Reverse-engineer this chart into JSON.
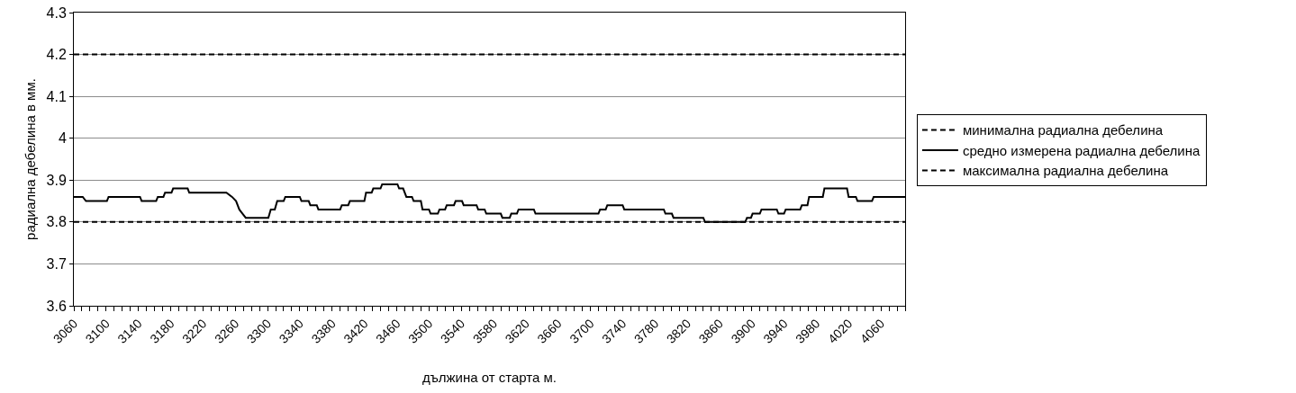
{
  "chart_data": {
    "type": "line",
    "xlabel": "дължина от старта м.",
    "ylabel": "радиална дебелина в мм.",
    "series": [
      {
        "name": "минимална радиална дебелина",
        "color": "#000000",
        "line_style": "dashed",
        "x": [
          3060,
          4090
        ],
        "values": [
          3.8,
          3.8
        ]
      },
      {
        "name": "средно измерена радиална дебелина",
        "color": "#000000",
        "line_style": "solid",
        "x": [
          3060,
          3071,
          3075,
          3101,
          3103,
          3142,
          3144,
          3162,
          3164,
          3171,
          3173,
          3181,
          3183,
          3201,
          3203,
          3249,
          3256,
          3261,
          3265,
          3269,
          3273,
          3301,
          3304,
          3309,
          3312,
          3320,
          3322,
          3340,
          3342,
          3351,
          3353,
          3361,
          3363,
          3390,
          3392,
          3400,
          3402,
          3420,
          3422,
          3429,
          3431,
          3440,
          3442,
          3461,
          3463,
          3468,
          3472,
          3479,
          3481,
          3490,
          3492,
          3500,
          3502,
          3511,
          3513,
          3520,
          3522,
          3531,
          3533,
          3541,
          3543,
          3559,
          3561,
          3569,
          3571,
          3589,
          3591,
          3600,
          3602,
          3609,
          3611,
          3630,
          3632,
          3710,
          3712,
          3719,
          3721,
          3740,
          3742,
          3791,
          3793,
          3801,
          3803,
          3840,
          3842,
          3892,
          3894,
          3899,
          3901,
          3910,
          3912,
          3931,
          3933,
          3940,
          3942,
          3960,
          3962,
          3969,
          3971,
          3988,
          3990,
          4018,
          4020,
          4029,
          4031,
          4049,
          4051,
          4090
        ],
        "values": [
          3.86,
          3.86,
          3.85,
          3.85,
          3.86,
          3.86,
          3.85,
          3.85,
          3.86,
          3.86,
          3.87,
          3.87,
          3.88,
          3.88,
          3.87,
          3.87,
          3.86,
          3.85,
          3.83,
          3.82,
          3.81,
          3.81,
          3.83,
          3.83,
          3.85,
          3.85,
          3.86,
          3.86,
          3.85,
          3.85,
          3.84,
          3.84,
          3.83,
          3.83,
          3.84,
          3.84,
          3.85,
          3.85,
          3.87,
          3.87,
          3.88,
          3.88,
          3.89,
          3.89,
          3.88,
          3.88,
          3.86,
          3.86,
          3.85,
          3.85,
          3.83,
          3.83,
          3.82,
          3.82,
          3.83,
          3.83,
          3.84,
          3.84,
          3.85,
          3.85,
          3.84,
          3.84,
          3.83,
          3.83,
          3.82,
          3.82,
          3.81,
          3.81,
          3.82,
          3.82,
          3.83,
          3.83,
          3.82,
          3.82,
          3.83,
          3.83,
          3.84,
          3.84,
          3.83,
          3.83,
          3.82,
          3.82,
          3.81,
          3.81,
          3.8,
          3.8,
          3.81,
          3.81,
          3.82,
          3.82,
          3.83,
          3.83,
          3.82,
          3.82,
          3.83,
          3.83,
          3.84,
          3.84,
          3.86,
          3.86,
          3.88,
          3.88,
          3.86,
          3.86,
          3.85,
          3.85,
          3.86,
          3.86
        ]
      },
      {
        "name": "максимална радиална дебелина",
        "color": "#000000",
        "line_style": "dashed",
        "x": [
          3060,
          4090
        ],
        "values": [
          4.2,
          4.2
        ]
      }
    ],
    "xlim": [
      3060,
      4090
    ],
    "xticks": [
      3060,
      {
        "value": 3070,
        "label": null
      },
      {
        "value": 3080,
        "label": null
      },
      {
        "value": 3090,
        "label": null
      },
      3100,
      {
        "value": 3110,
        "label": null
      },
      {
        "value": 3120,
        "label": null
      },
      {
        "value": 3130,
        "label": null
      },
      3140,
      {
        "value": 3150,
        "label": null
      },
      {
        "value": 3160,
        "label": null
      },
      {
        "value": 3170,
        "label": null
      },
      3180,
      {
        "value": 3190,
        "label": null
      },
      {
        "value": 3200,
        "label": null
      },
      {
        "value": 3210,
        "label": null
      },
      3220,
      {
        "value": 3230,
        "label": null
      },
      {
        "value": 3240,
        "label": null
      },
      {
        "value": 3250,
        "label": null
      },
      3260,
      {
        "value": 3270,
        "label": null
      },
      {
        "value": 3280,
        "label": null
      },
      {
        "value": 3290,
        "label": null
      },
      3300,
      {
        "value": 3310,
        "label": null
      },
      {
        "value": 3320,
        "label": null
      },
      {
        "value": 3330,
        "label": null
      },
      3340,
      {
        "value": 3350,
        "label": null
      },
      {
        "value": 3360,
        "label": null
      },
      {
        "value": 3370,
        "label": null
      },
      3380,
      {
        "value": 3390,
        "label": null
      },
      {
        "value": 3400,
        "label": null
      },
      {
        "value": 3410,
        "label": null
      },
      3420,
      {
        "value": 3430,
        "label": null
      },
      {
        "value": 3440,
        "label": null
      },
      {
        "value": 3450,
        "label": null
      },
      3460,
      {
        "value": 3470,
        "label": null
      },
      {
        "value": 3480,
        "label": null
      },
      {
        "value": 3490,
        "label": null
      },
      3500,
      {
        "value": 3510,
        "label": null
      },
      {
        "value": 3520,
        "label": null
      },
      {
        "value": 3530,
        "label": null
      },
      3540,
      {
        "value": 3550,
        "label": null
      },
      {
        "value": 3560,
        "label": null
      },
      {
        "value": 3570,
        "label": null
      },
      3580,
      {
        "value": 3590,
        "label": null
      },
      {
        "value": 3600,
        "label": null
      },
      {
        "value": 3610,
        "label": null
      },
      3620,
      {
        "value": 3630,
        "label": null
      },
      {
        "value": 3640,
        "label": null
      },
      {
        "value": 3650,
        "label": null
      },
      3660,
      {
        "value": 3670,
        "label": null
      },
      {
        "value": 3680,
        "label": null
      },
      {
        "value": 3690,
        "label": null
      },
      3700,
      {
        "value": 3710,
        "label": null
      },
      {
        "value": 3720,
        "label": null
      },
      {
        "value": 3730,
        "label": null
      },
      3740,
      {
        "value": 3750,
        "label": null
      },
      {
        "value": 3760,
        "label": null
      },
      {
        "value": 3770,
        "label": null
      },
      3780,
      {
        "value": 3790,
        "label": null
      },
      {
        "value": 3800,
        "label": null
      },
      {
        "value": 3810,
        "label": null
      },
      3820,
      {
        "value": 3830,
        "label": null
      },
      {
        "value": 3840,
        "label": null
      },
      {
        "value": 3850,
        "label": null
      },
      3860,
      {
        "value": 3870,
        "label": null
      },
      {
        "value": 3880,
        "label": null
      },
      {
        "value": 3890,
        "label": null
      },
      3900,
      {
        "value": 3910,
        "label": null
      },
      {
        "value": 3920,
        "label": null
      },
      {
        "value": 3930,
        "label": null
      },
      3940,
      {
        "value": 3950,
        "label": null
      },
      {
        "value": 3960,
        "label": null
      },
      {
        "value": 3970,
        "label": null
      },
      3980,
      {
        "value": 3990,
        "label": null
      },
      {
        "value": 4000,
        "label": null
      },
      {
        "value": 4010,
        "label": null
      },
      4020,
      {
        "value": 4030,
        "label": null
      },
      {
        "value": 4040,
        "label": null
      },
      {
        "value": 4050,
        "label": null
      },
      4060,
      {
        "value": 4070,
        "label": null
      },
      {
        "value": 4080,
        "label": null
      },
      {
        "value": 4090,
        "label": null
      }
    ],
    "ylim": [
      3.6,
      4.3
    ],
    "yticks": [
      3.6,
      3.7,
      3.8,
      3.9,
      4,
      4.1,
      4.2,
      4.3
    ],
    "grid": "y",
    "legend": "right",
    "marker": "none"
  }
}
